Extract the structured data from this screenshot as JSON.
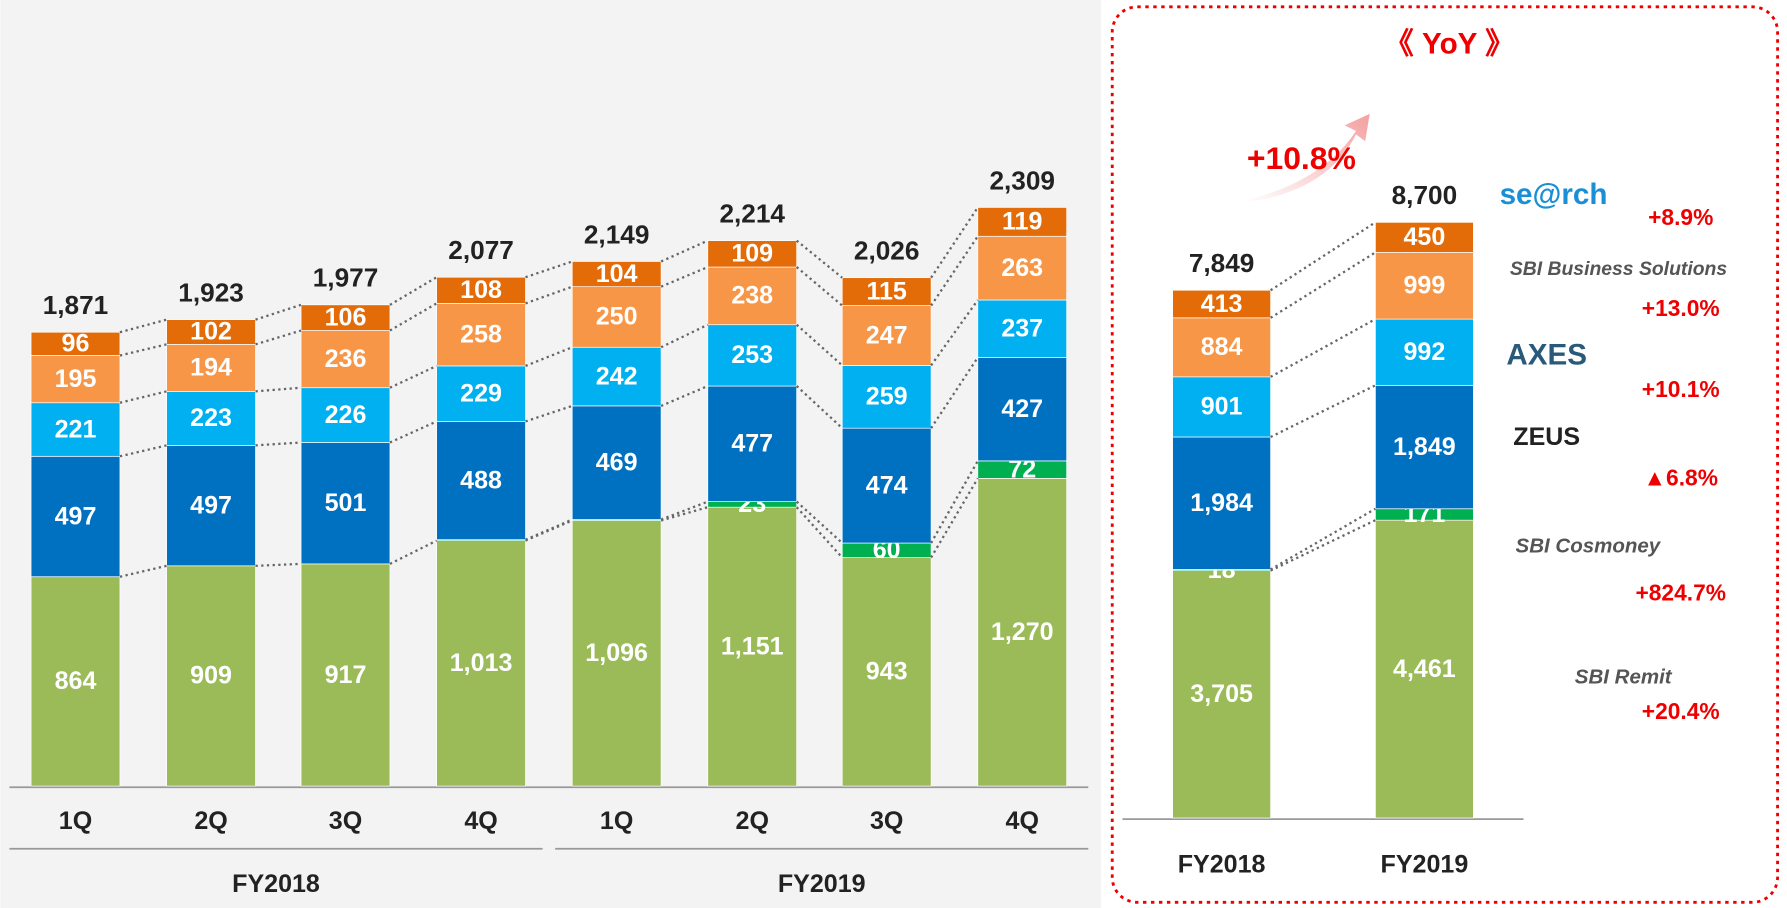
{
  "chart_data": [
    {
      "type": "stacked-bar",
      "categories": [
        "1Q",
        "2Q",
        "3Q",
        "4Q",
        "1Q",
        "2Q",
        "3Q",
        "4Q"
      ],
      "groups": [
        "FY2018",
        "FY2019"
      ],
      "totals": [
        {
          "value": 1871,
          "label": "1,871"
        },
        {
          "value": 1923,
          "label": "1,923"
        },
        {
          "value": 1977,
          "label": "1,977"
        },
        {
          "value": 2077,
          "label": "2,077"
        },
        {
          "value": 2149,
          "label": "2,149"
        },
        {
          "value": 2214,
          "label": "2,214"
        },
        {
          "value": 2026,
          "label": "2,026"
        },
        {
          "value": 2309,
          "label": "2,309"
        }
      ],
      "series": [
        {
          "values": [
            864,
            909,
            917,
            1013,
            1096,
            1151,
            943,
            1270
          ],
          "value_labels": [
            "864",
            "909",
            "917",
            "1,013",
            "1,096",
            "1,151",
            "943",
            "1,270"
          ]
        },
        {
          "values": [
            null,
            null,
            null,
            4,
            4,
            23,
            60,
            72
          ]
        },
        {
          "values": [
            497,
            497,
            501,
            488,
            469,
            477,
            474,
            427
          ]
        },
        {
          "values": [
            221,
            223,
            226,
            229,
            242,
            253,
            259,
            237
          ]
        },
        {
          "values": [
            195,
            194,
            236,
            258,
            250,
            238,
            247,
            263
          ]
        },
        {
          "values": [
            96,
            102,
            106,
            108,
            104,
            109,
            115,
            119
          ]
        }
      ]
    },
    {
      "type": "stacked-bar",
      "title": "《 YoY 》",
      "annotation": "+10.8%",
      "categories": [
        "FY2018",
        "FY2019"
      ],
      "totals": [
        {
          "value": 7849,
          "label": "7,849"
        },
        {
          "value": 8700,
          "label": "8,700"
        }
      ],
      "series": [
        {
          "name": "SBI Remit",
          "color": "#9bbb59",
          "values": [
            3705,
            4461
          ],
          "value_labels": [
            "3,705",
            "4,461"
          ],
          "change": "+20.4%"
        },
        {
          "name": "SBI Cosmoney",
          "color": "#00b050",
          "values": [
            18,
            171
          ],
          "change": "+824.7%"
        },
        {
          "name": "ZEUS",
          "color": "#0070c0",
          "values": [
            1984,
            1849
          ],
          "value_labels": [
            "1,984",
            "1,849"
          ],
          "change": "▲6.8%"
        },
        {
          "name": "AXES",
          "color": "#00b0f0",
          "values": [
            901,
            992
          ],
          "change": "+10.1%"
        },
        {
          "name": "SBI Business Solutions",
          "color": "#f79646",
          "values": [
            884,
            999
          ],
          "change": "+13.0%"
        },
        {
          "name": "se@rch",
          "color": "#e36c09",
          "values": [
            413,
            450
          ],
          "change": "+8.9%"
        }
      ]
    }
  ]
}
